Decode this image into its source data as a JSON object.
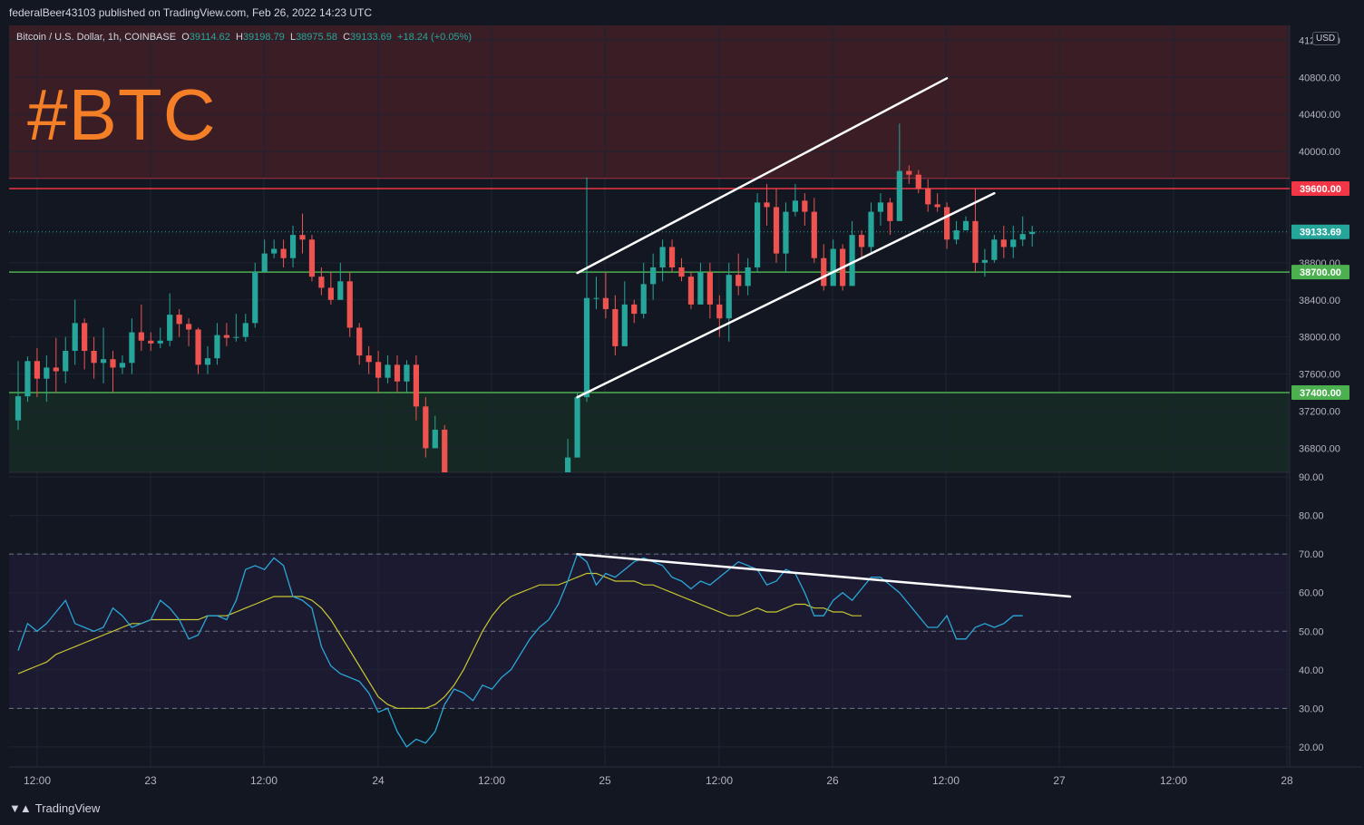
{
  "header": {
    "publisher_line": "federalBeer43103 published on TradingView.com, Feb 26, 2022 14:23 UTC"
  },
  "legend": {
    "symbol": "Bitcoin / U.S. Dollar, 1h, COINBASE",
    "o_label": "O",
    "o_value": "39114.62",
    "h_label": "H",
    "h_value": "39198.79",
    "l_label": "L",
    "l_value": "38975.58",
    "c_label": "C",
    "c_value": "39133.69",
    "change": "+18.24 (+0.05%)"
  },
  "annotation": {
    "tag": "#BTC"
  },
  "currency_badge": "USD",
  "footer": {
    "brand": "TradingView"
  },
  "colors": {
    "up": "#26a69a",
    "down": "#ef5350",
    "resistance": "#f23645",
    "support": "#4caf50",
    "rsi_line": "#2aa7d8",
    "rsi_ma": "#c8c832",
    "tag_orange": "#f57f26"
  },
  "chart_data": [
    {
      "type": "candlestick",
      "title": "",
      "y_ticks": [
        "41200.00",
        "40800.00",
        "40400.00",
        "40000.00",
        "38800.00",
        "38400.00",
        "38000.00",
        "37600.00",
        "37200.00",
        "36800.00"
      ],
      "ylim": [
        36540,
        41360
      ],
      "x_ticks": [
        "12:00",
        "23",
        "12:00",
        "24",
        "12:00",
        "25",
        "12:00",
        "26",
        "12:00",
        "27",
        "12:00",
        "28"
      ],
      "levels": [
        {
          "label": "39600.00",
          "value": 39600,
          "kind": "resistance"
        },
        {
          "label": "38700.00",
          "value": 38700,
          "kind": "support"
        },
        {
          "label": "37400.00",
          "value": 37400,
          "kind": "support"
        }
      ],
      "current_price": {
        "label": "39133.69",
        "value": 39133.69
      },
      "zones": [
        {
          "kind": "resistance",
          "from": 39710,
          "to": 41360
        },
        {
          "kind": "support",
          "from": 36540,
          "to": 37400
        }
      ],
      "trendlines": [
        {
          "name": "channel-upper",
          "from": {
            "hour": 59,
            "price": 38690
          },
          "to": {
            "hour": 98,
            "price": 40790
          }
        },
        {
          "name": "channel-lower",
          "from": {
            "hour": 59,
            "price": 37350
          },
          "to": {
            "hour": 103,
            "price": 39550
          }
        }
      ],
      "candles": [
        [
          37100,
          37360,
          37000,
          37740
        ],
        [
          37360,
          37740,
          37300,
          37790
        ],
        [
          37740,
          37550,
          37350,
          37880
        ],
        [
          37550,
          37670,
          37300,
          37800
        ],
        [
          37670,
          37630,
          37400,
          37990
        ],
        [
          37630,
          37850,
          37500,
          38000
        ],
        [
          37850,
          38150,
          37700,
          38400
        ],
        [
          38150,
          37850,
          37650,
          38200
        ],
        [
          37850,
          37720,
          37550,
          38000
        ],
        [
          37720,
          37760,
          37500,
          38100
        ],
        [
          37760,
          37670,
          37400,
          37850
        ],
        [
          37670,
          37720,
          37600,
          37800
        ],
        [
          37720,
          38050,
          37600,
          38200
        ],
        [
          38050,
          37960,
          37850,
          38350
        ],
        [
          37960,
          37930,
          37850,
          38050
        ],
        [
          37930,
          37960,
          37880,
          38100
        ],
        [
          37960,
          38240,
          37900,
          38470
        ],
        [
          38240,
          38140,
          38000,
          38300
        ],
        [
          38140,
          38080,
          37900,
          38200
        ],
        [
          38080,
          37700,
          37600,
          38100
        ],
        [
          37700,
          37770,
          37600,
          37900
        ],
        [
          37770,
          38020,
          37700,
          38150
        ],
        [
          38020,
          37990,
          37900,
          38150
        ],
        [
          37990,
          38000,
          37950,
          38250
        ],
        [
          38000,
          38150,
          37950,
          38250
        ],
        [
          38150,
          38700,
          38100,
          38800
        ],
        [
          38700,
          38900,
          38750,
          39050
        ],
        [
          38900,
          38950,
          38850,
          39050
        ],
        [
          38950,
          38850,
          38750,
          39050
        ],
        [
          38850,
          39100,
          38750,
          39200
        ],
        [
          39100,
          39050,
          38900,
          39330
        ],
        [
          39050,
          38650,
          38600,
          39100
        ],
        [
          38650,
          38530,
          38450,
          38750
        ],
        [
          38530,
          38400,
          38350,
          38700
        ],
        [
          38400,
          38600,
          38450,
          38800
        ],
        [
          38600,
          38100,
          38000,
          38700
        ],
        [
          38100,
          37800,
          37700,
          38150
        ],
        [
          37800,
          37730,
          37600,
          37900
        ],
        [
          37730,
          37560,
          37400,
          37850
        ],
        [
          37560,
          37700,
          37500,
          37800
        ],
        [
          37700,
          37520,
          37400,
          37800
        ],
        [
          37520,
          37700,
          37400,
          37750
        ],
        [
          37700,
          37250,
          37100,
          37800
        ],
        [
          37250,
          36800,
          36700,
          37350
        ],
        [
          36800,
          37000,
          36850,
          37150
        ],
        [
          37000,
          36540,
          36540,
          37050
        ],
        null,
        null,
        null,
        null,
        null,
        null,
        null,
        null,
        null,
        null,
        null,
        null,
        [
          36540,
          36700,
          36540,
          36900
        ],
        [
          36700,
          37350,
          36800,
          37400
        ],
        [
          37350,
          38420,
          37300,
          39720
        ],
        [
          38420,
          38420,
          38300,
          38650
        ],
        [
          38420,
          38300,
          38200,
          38700
        ],
        [
          38300,
          37900,
          37800,
          38450
        ],
        [
          37900,
          38350,
          37950,
          38600
        ],
        [
          38350,
          38250,
          38150,
          38400
        ],
        [
          38250,
          38570,
          38200,
          38800
        ],
        [
          38570,
          38750,
          38400,
          38900
        ],
        [
          38750,
          38970,
          38600,
          39050
        ],
        [
          38970,
          38750,
          38700,
          39050
        ],
        [
          38750,
          38650,
          38600,
          38850
        ],
        [
          38650,
          38350,
          38300,
          38700
        ],
        [
          38350,
          38700,
          38400,
          38800
        ],
        [
          38700,
          38350,
          38200,
          38800
        ],
        [
          38350,
          38200,
          38000,
          38450
        ],
        [
          38200,
          38670,
          37950,
          38800
        ],
        [
          38670,
          38550,
          38450,
          38900
        ],
        [
          38550,
          38750,
          38450,
          38850
        ],
        [
          38750,
          39450,
          38700,
          39550
        ],
        [
          39450,
          39400,
          39200,
          39650
        ],
        [
          39400,
          38900,
          38800,
          39600
        ],
        [
          38900,
          39350,
          38700,
          39450
        ],
        [
          39350,
          39470,
          39300,
          39650
        ],
        [
          39470,
          39350,
          39200,
          39550
        ],
        [
          39350,
          38850,
          38800,
          39500
        ],
        [
          38850,
          38550,
          38500,
          39000
        ],
        [
          38550,
          38950,
          38600,
          39050
        ],
        [
          38950,
          38550,
          38500,
          39000
        ],
        [
          38550,
          39100,
          38600,
          39250
        ],
        [
          39100,
          38970,
          38850,
          39150
        ],
        [
          38970,
          39350,
          38900,
          39450
        ],
        [
          39350,
          39450,
          39200,
          39550
        ],
        [
          39450,
          39250,
          39100,
          39500
        ],
        [
          39250,
          39790,
          39250,
          40300
        ],
        [
          39790,
          39750,
          39650,
          39850
        ],
        [
          39750,
          39600,
          39550,
          39800
        ],
        [
          39600,
          39430,
          39350,
          39700
        ],
        [
          39430,
          39400,
          39350,
          39550
        ],
        [
          39400,
          39050,
          38950,
          39450
        ],
        [
          39050,
          39150,
          39000,
          39250
        ],
        [
          39150,
          39250,
          39150,
          39300
        ],
        [
          39250,
          38800,
          38700,
          39600
        ],
        [
          38800,
          38830,
          38650,
          38950
        ],
        [
          38830,
          39050,
          38800,
          39100
        ],
        [
          39050,
          38970,
          38850,
          39200
        ],
        [
          38970,
          39050,
          38850,
          39200
        ],
        [
          39050,
          39110,
          38980,
          39300
        ],
        [
          39110,
          39133.69,
          38975.58,
          39198.79
        ]
      ]
    },
    {
      "type": "line",
      "title": "",
      "y_ticks": [
        "90.00",
        "80.00",
        "70.00",
        "60.00",
        "50.00",
        "40.00",
        "30.00",
        "20.00"
      ],
      "ylim": [
        14.8,
        91.2
      ],
      "bands": [
        70,
        50,
        30
      ],
      "trendlines": [
        {
          "name": "rsi-divergence",
          "from": {
            "hour": 59,
            "value": 70
          },
          "to": {
            "hour": 111,
            "value": 59
          }
        }
      ],
      "series": [
        {
          "values": [
            45,
            52,
            50,
            52,
            55,
            58,
            52,
            51,
            50,
            51,
            56,
            54,
            51,
            52,
            53,
            58,
            56,
            53,
            48,
            49,
            54,
            54,
            53,
            58,
            66,
            67,
            66,
            69,
            67,
            59,
            58,
            56,
            46,
            41,
            39,
            38,
            37,
            34,
            29,
            30,
            24,
            20,
            22,
            21,
            24,
            31,
            35,
            34,
            32,
            36,
            35,
            38,
            40,
            44,
            48,
            51,
            53,
            57,
            63,
            70,
            68,
            62,
            65,
            64,
            66,
            68,
            69,
            68,
            67,
            64,
            63,
            61,
            63,
            62,
            64,
            66,
            68,
            67,
            66,
            62,
            63,
            66,
            65,
            60,
            54,
            54,
            58,
            60,
            58,
            61,
            64,
            64,
            62,
            60,
            57,
            54,
            51,
            51,
            54,
            48,
            48,
            51,
            52,
            51,
            52,
            54,
            54
          ],
          "start_hour": 0
        },
        {
          "values": [
            39,
            40,
            41,
            42,
            44,
            45,
            46,
            47,
            48,
            49,
            50,
            51,
            52,
            52,
            53,
            53,
            53,
            53,
            53,
            53,
            54,
            54,
            54,
            55,
            56,
            57,
            58,
            59,
            59,
            59,
            59,
            58,
            56,
            53,
            49,
            45,
            41,
            37,
            33,
            31,
            30,
            30,
            30,
            30,
            31,
            33,
            36,
            40,
            45,
            50,
            54,
            57,
            59,
            60,
            61,
            62,
            62,
            62,
            63,
            64,
            65,
            65,
            64,
            63,
            63,
            63,
            62,
            62,
            61,
            60,
            59,
            58,
            57,
            56,
            55,
            54,
            54,
            55,
            56,
            55,
            55,
            56,
            57,
            57,
            56,
            56,
            55,
            55,
            54,
            54
          ],
          "start_hour": 0
        }
      ]
    }
  ]
}
